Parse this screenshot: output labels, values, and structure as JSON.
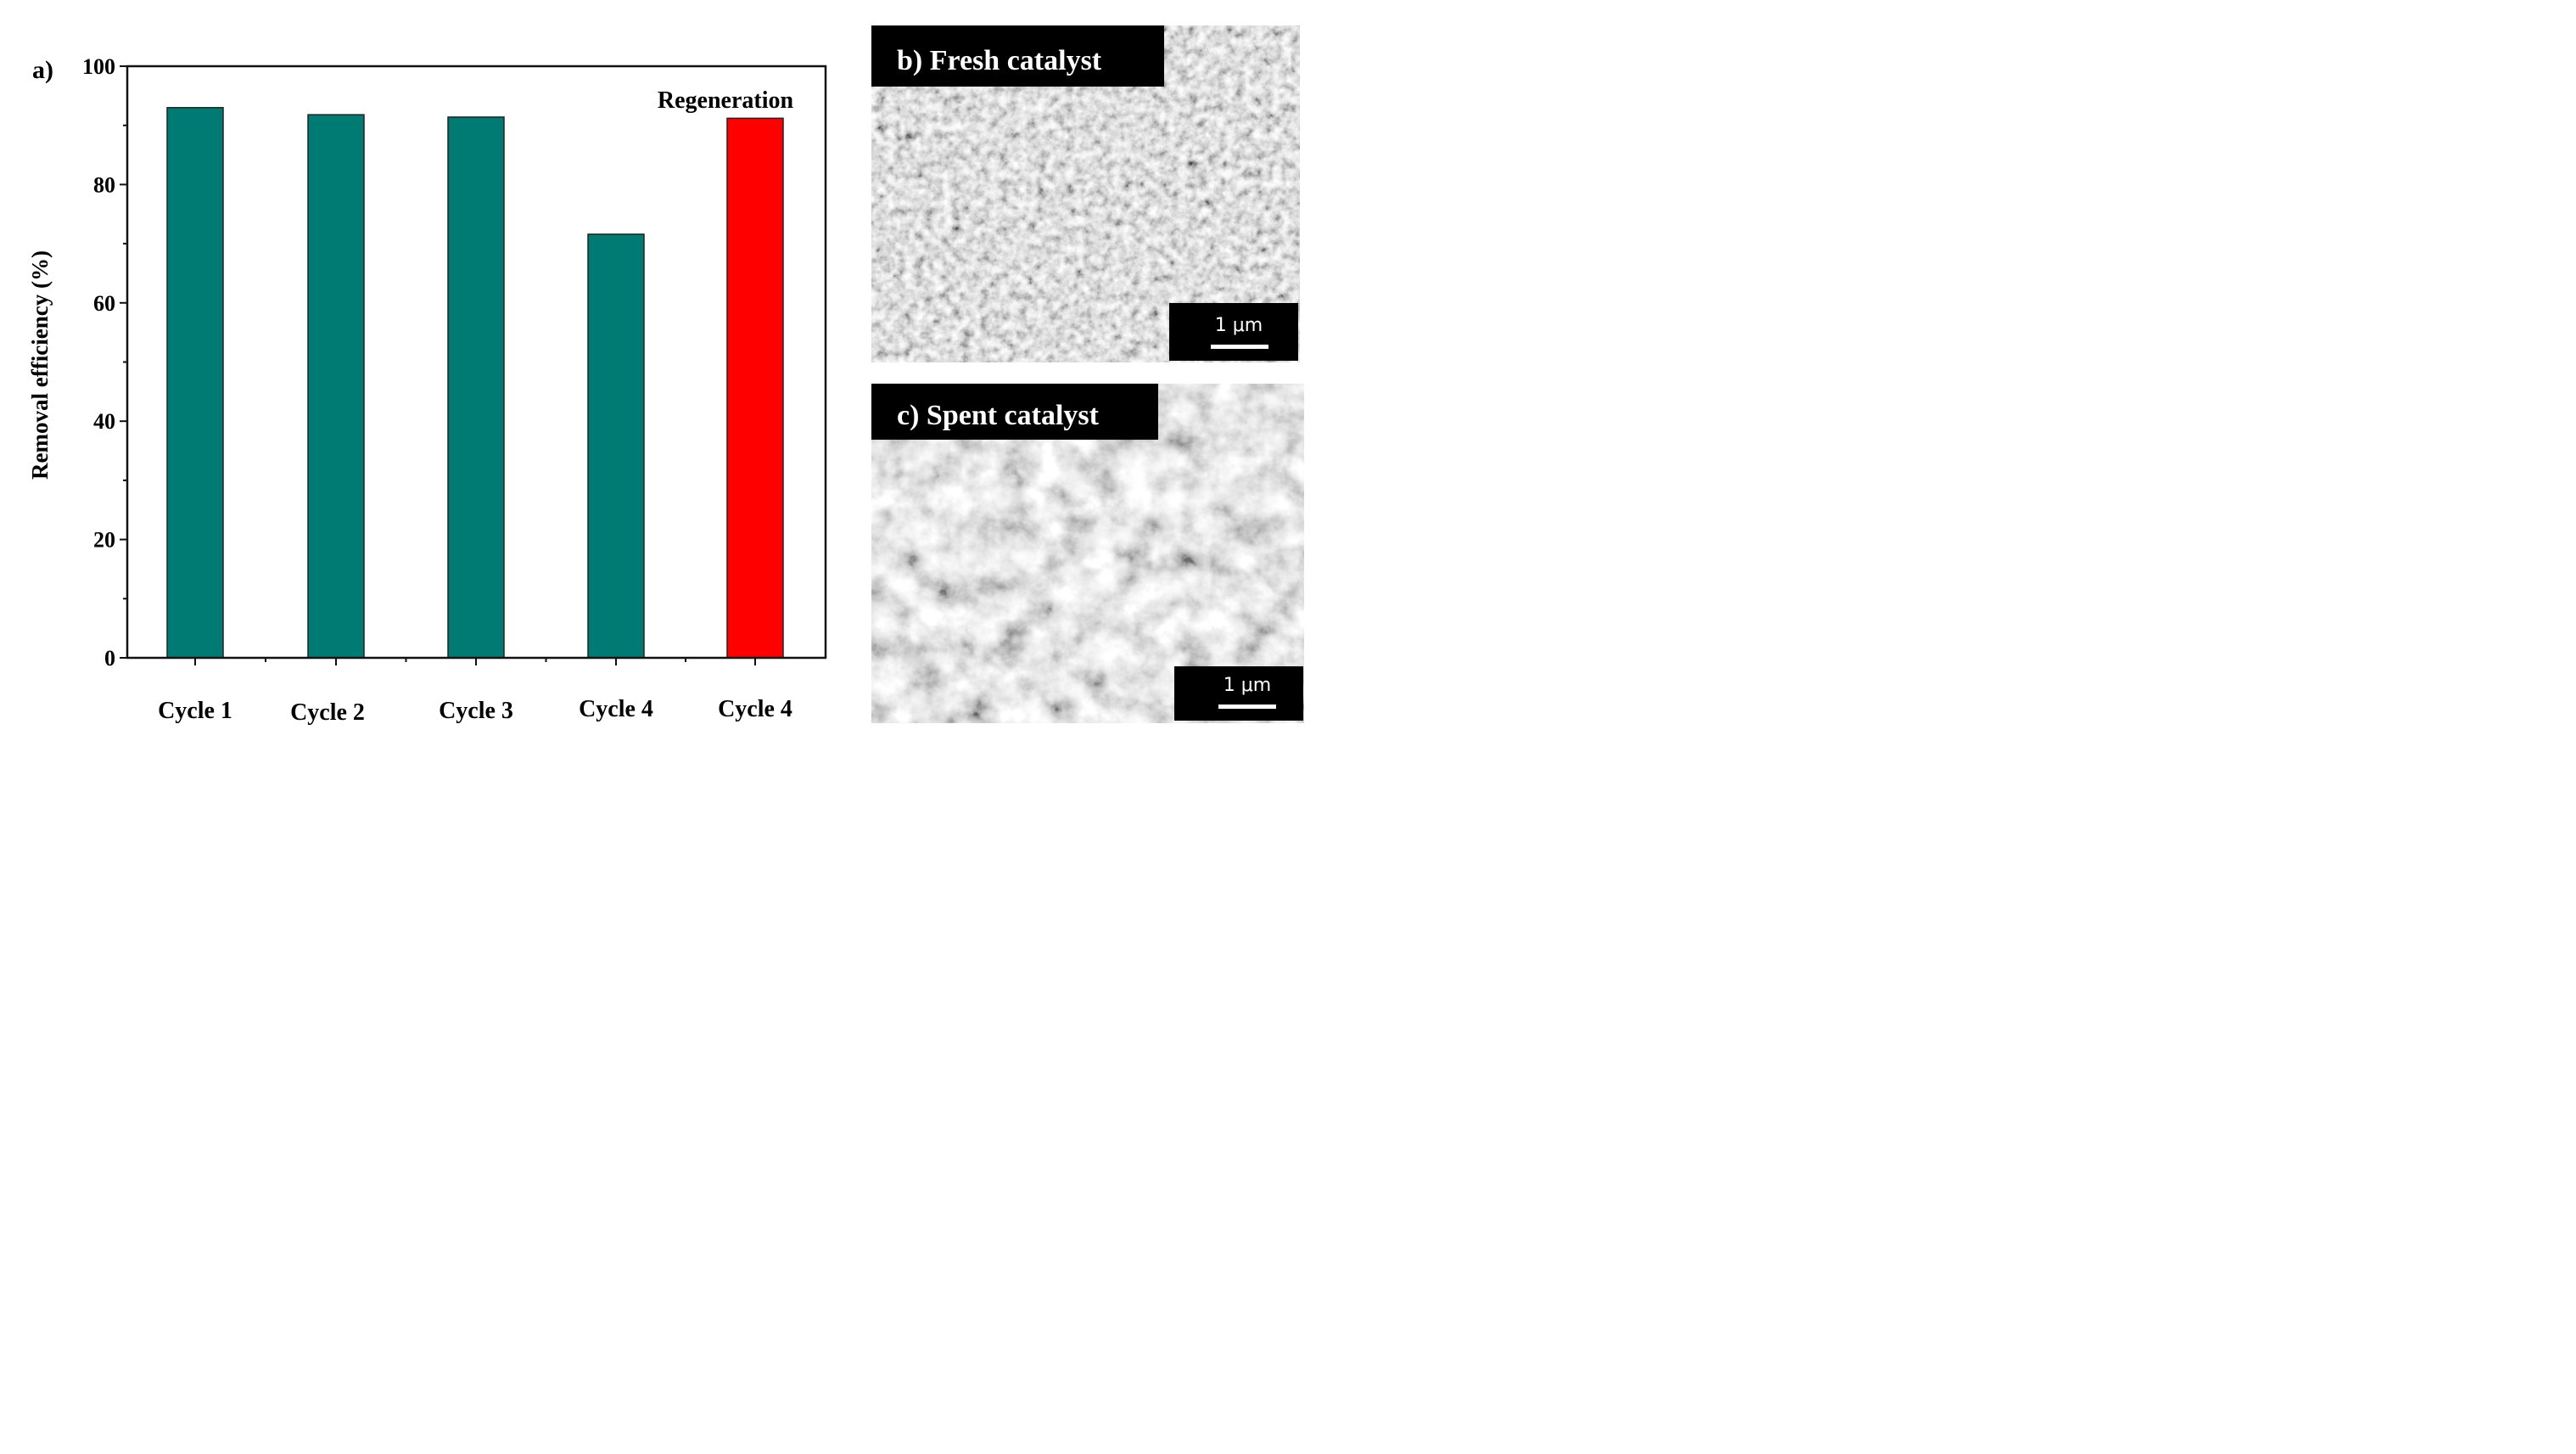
{
  "chart_data": {
    "type": "bar",
    "panel_label": "a)",
    "categories": [
      "Cycle 1",
      "Cycle 2",
      "Cycle 3",
      "Cycle 4",
      "Cycle 4"
    ],
    "values": [
      93.0,
      91.8,
      91.4,
      71.6,
      91.2
    ],
    "bar_colors": [
      "#007B73",
      "#007B73",
      "#007B73",
      "#007B73",
      "#FF0000"
    ],
    "annotation": "Regeneration",
    "ylabel": "Removal efficiency (%)",
    "xlabel": "",
    "ylim": [
      0,
      100
    ],
    "yticks": [
      0,
      20,
      40,
      60,
      80,
      100
    ],
    "grid": false
  },
  "images": {
    "fresh": {
      "label": "b) Fresh catalyst",
      "scale_bar": "1 μm"
    },
    "spent": {
      "label": "c) Spent catalyst",
      "scale_bar": "1 μm"
    }
  }
}
